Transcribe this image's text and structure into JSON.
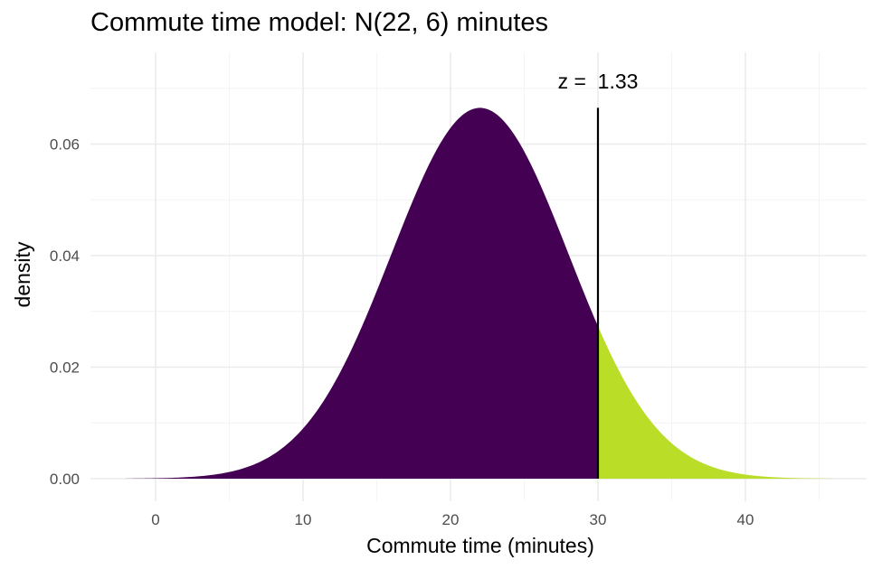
{
  "chart_data": {
    "type": "area",
    "title": "Commute time model: N(22, 6) minutes",
    "xlabel": "Commute time (minutes)",
    "ylabel": "density",
    "distribution": {
      "family": "normal",
      "mean": 22,
      "sd": 6
    },
    "xlim": [
      -2,
      46
    ],
    "ylim": [
      0,
      0.07
    ],
    "x_ticks": [
      0,
      10,
      20,
      30,
      40
    ],
    "x_tick_labels": [
      "0",
      "10",
      "20",
      "30",
      "40"
    ],
    "y_ticks": [
      0,
      0.02,
      0.04,
      0.06
    ],
    "y_tick_labels": [
      "0.00",
      "0.02",
      "0.04",
      "0.06"
    ],
    "grid": true,
    "cutoff": 30,
    "series": [
      {
        "range": [
          -2,
          30
        ],
        "color": "#440154"
      },
      {
        "range": [
          30,
          46
        ],
        "color": "#BADE28"
      }
    ],
    "annotation": {
      "text": "z =  1.33",
      "x": 30
    }
  }
}
